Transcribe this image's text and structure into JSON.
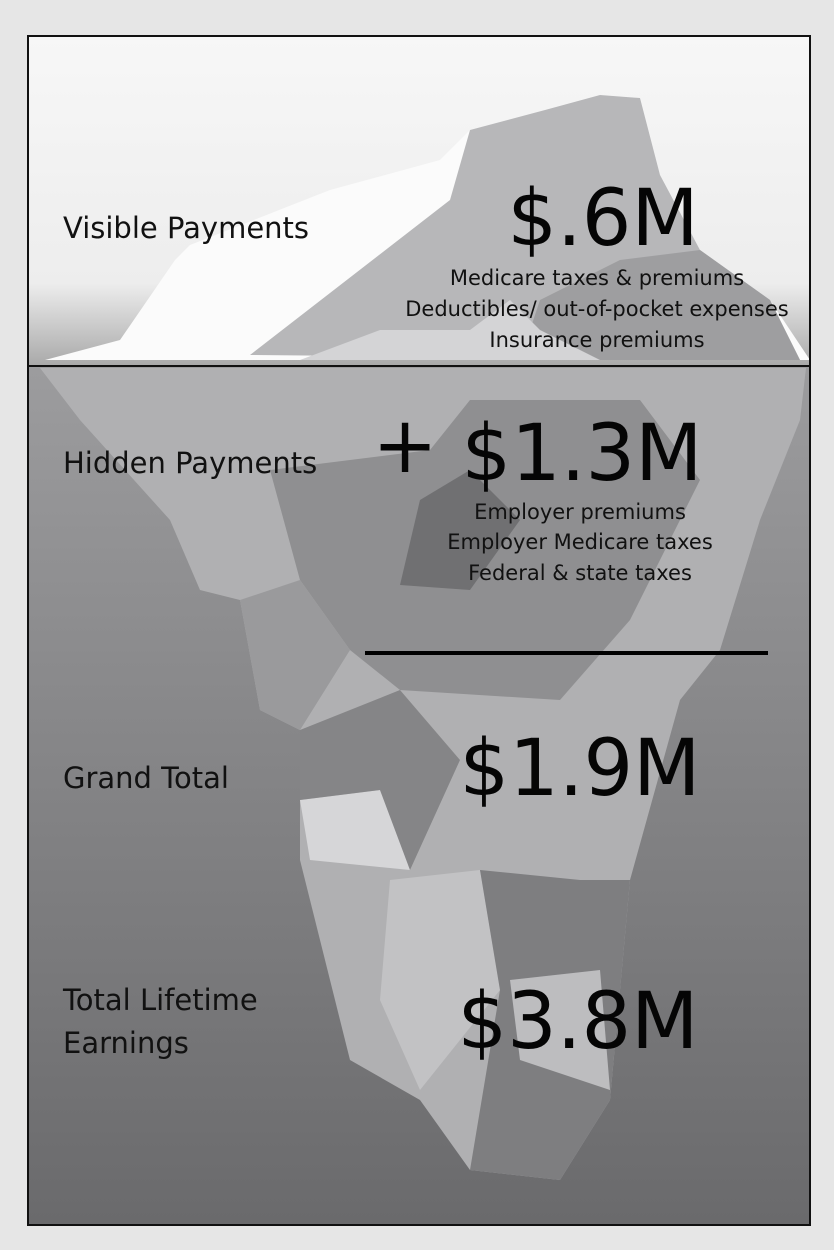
{
  "sections": [
    {
      "label_lines": [
        "Visible Payments"
      ],
      "amount": "$.6M",
      "items": [
        "Medicare taxes & premiums",
        "Deductibles/ out-of-pocket expenses",
        "Insurance premiums"
      ]
    },
    {
      "label_lines": [
        "Hidden Payments"
      ],
      "operator": "+",
      "amount": "$1.3M",
      "items": [
        "Employer premiums",
        "Employer Medicare taxes",
        "Federal & state taxes"
      ]
    },
    {
      "label_lines": [
        "Grand Total"
      ],
      "amount": "$1.9M"
    },
    {
      "label_lines": [
        "Total Lifetime",
        "Earnings"
      ],
      "amount": "$3.8M"
    }
  ]
}
